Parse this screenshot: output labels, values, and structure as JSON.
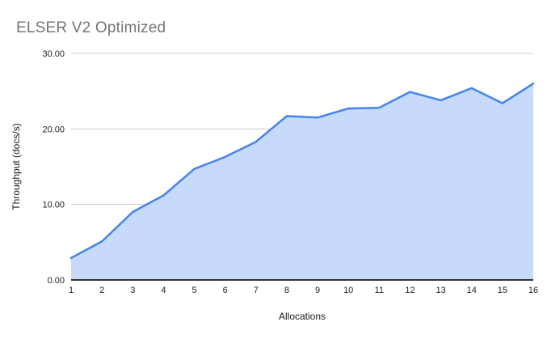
{
  "title": "ELSER V2 Optimized",
  "chart_data": {
    "type": "area",
    "title": "ELSER V2 Optimized",
    "xlabel": "Allocations",
    "ylabel": "Throughput (docs/s)",
    "categories": [
      "1",
      "2",
      "3",
      "4",
      "5",
      "6",
      "7",
      "8",
      "9",
      "10",
      "11",
      "12",
      "13",
      "14",
      "15",
      "16"
    ],
    "values": [
      2.9,
      5.1,
      9.0,
      11.2,
      14.7,
      16.3,
      18.3,
      21.7,
      21.5,
      22.7,
      22.8,
      24.9,
      23.8,
      25.4,
      23.4,
      26.0
    ],
    "ylim": [
      0,
      30
    ],
    "y_ticks": [
      0,
      10,
      20,
      30
    ],
    "y_tick_labels": [
      "0.00",
      "10.00",
      "20.00",
      "30.00"
    ],
    "grid": true,
    "legend_position": "none",
    "series_name": "Throughput (docs/s)"
  },
  "colors": {
    "line": "#4285f4",
    "fill": "#c8dafb",
    "grid": "#cccccc",
    "axis": "#333333",
    "title": "#757575",
    "tick_label": "#222222",
    "axis_label": "#1a1a1a",
    "background": "#ffffff"
  }
}
